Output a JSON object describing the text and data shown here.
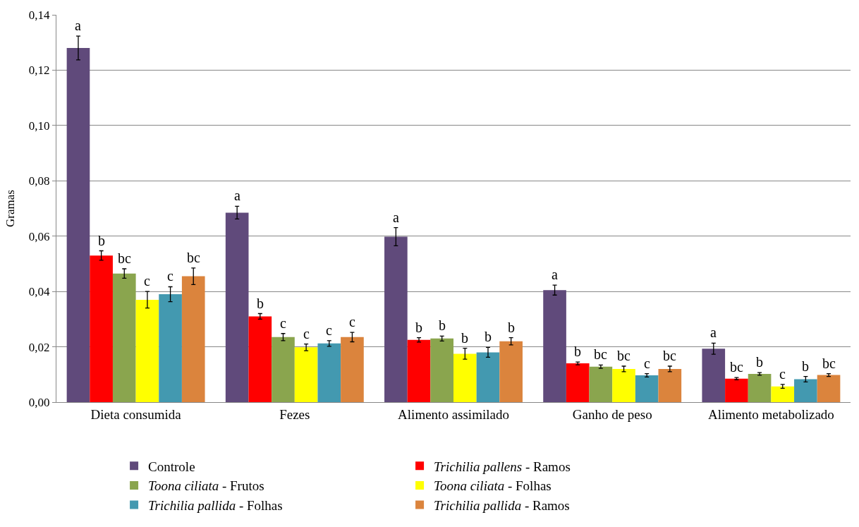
{
  "chart_data": {
    "type": "bar",
    "ylabel": "Gramas",
    "categories": [
      "Dieta consumida",
      "Fezes",
      "Alimento assimilado",
      "Ganho de peso",
      "Alimento metabolizado"
    ],
    "series": [
      {
        "name": "Controle",
        "color": "#604a7b",
        "values": [
          0.128,
          0.0685,
          0.0598,
          0.0405,
          0.0193
        ],
        "errors": [
          0.0043,
          0.0023,
          0.0033,
          0.0018,
          0.002
        ],
        "value_labels": [
          "a",
          "a",
          "a",
          "a",
          "a"
        ]
      },
      {
        "name": "Trichilia pallens - Ramos",
        "color": "#ff0000",
        "values": [
          0.053,
          0.031,
          0.0225,
          0.014,
          0.0085
        ],
        "errors": [
          0.0017,
          0.001,
          0.0008,
          0.0005,
          0.0004
        ],
        "value_labels": [
          "b",
          "b",
          "b",
          "b",
          "bc"
        ]
      },
      {
        "name": "Toona ciliata - Frutos",
        "color": "#8aa54e",
        "values": [
          0.0465,
          0.0235,
          0.023,
          0.0128,
          0.0102
        ],
        "errors": [
          0.0017,
          0.0013,
          0.0009,
          0.0006,
          0.0005
        ],
        "value_labels": [
          "bc",
          "c",
          "b",
          "bc",
          "b"
        ]
      },
      {
        "name": "Toona ciliata - Folhas",
        "color": "#ffff00",
        "values": [
          0.037,
          0.0198,
          0.0175,
          0.012,
          0.0057
        ],
        "errors": [
          0.003,
          0.0012,
          0.002,
          0.001,
          0.0007
        ],
        "value_labels": [
          "c",
          "c",
          "b",
          "bc",
          "c"
        ]
      },
      {
        "name": "Trichilia pallida - Folhas",
        "color": "#4399b0",
        "values": [
          0.039,
          0.0212,
          0.018,
          0.0097,
          0.0083
        ],
        "errors": [
          0.0027,
          0.001,
          0.0018,
          0.0006,
          0.001
        ],
        "value_labels": [
          "c",
          "c",
          "b",
          "c",
          "b"
        ]
      },
      {
        "name": "Trichilia pallida - Ramos",
        "color": "#db843d",
        "values": [
          0.0455,
          0.0235,
          0.022,
          0.012,
          0.0098
        ],
        "errors": [
          0.003,
          0.0017,
          0.0013,
          0.001,
          0.0005
        ],
        "value_labels": [
          "bc",
          "c",
          "b",
          "bc",
          "bc"
        ]
      }
    ],
    "ylim": [
      0,
      0.14
    ],
    "yticks": [
      {
        "value": 0,
        "label": "0,00"
      },
      {
        "value": 0.02,
        "label": "0,02"
      },
      {
        "value": 0.04,
        "label": "0,04"
      },
      {
        "value": 0.06,
        "label": "0,06"
      },
      {
        "value": 0.08,
        "label": "0,08"
      },
      {
        "value": 0.1,
        "label": "0,10"
      },
      {
        "value": 0.12,
        "label": "0,12"
      },
      {
        "value": 0.14,
        "label": "0,14"
      }
    ],
    "grid": "y",
    "legend": "bottom"
  }
}
